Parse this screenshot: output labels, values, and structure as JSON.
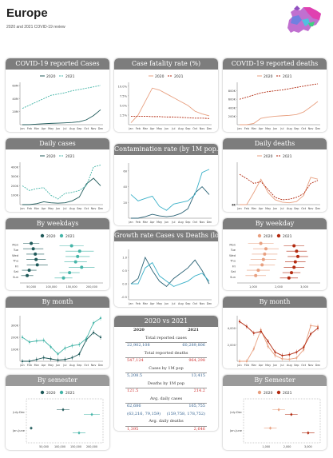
{
  "page": {
    "title": "Europe",
    "subtitle": "2020 and 2021 COVID-19 review"
  },
  "colors": {
    "teal_2020": "#1f5a5a",
    "teal_2021": "#45b5a8",
    "blue_2020": "#2a6275",
    "blue_2021": "#3ab0c8",
    "salmon_2020": "#e8a080",
    "red_2021": "#b22a10",
    "header": "#7d7d7d"
  },
  "months": [
    "Jan",
    "Feb",
    "Mar",
    "Apr",
    "May",
    "Jun",
    "Jul",
    "Aug",
    "Sep",
    "Oct",
    "Nov",
    "Dec"
  ],
  "weekdays": [
    "Mon",
    "Tue",
    "Wed",
    "Thu",
    "Fri",
    "Sat",
    "Sun"
  ],
  "legend": {
    "y2020": "2020",
    "y2021": "2021"
  },
  "panels": {
    "reported_cases": "COVID-19 reported Cases",
    "fatality_rate": "Case fatality rate (%)",
    "reported_deaths": "COVID-19 reported deaths",
    "daily_cases": "Daily cases",
    "contamination": "Contamination rate (by 1M pop.)",
    "daily_deaths": "Daily deaths",
    "weekdays_cases": "By weekdays",
    "growth": "Growth rate Cases vs Deaths (log)",
    "weekday_deaths": "By weekday",
    "month_cases": "By month",
    "vs": "2020 vs 2021",
    "month_deaths": "By month",
    "semester_cases": "By semester",
    "semester_deaths": "By Semester"
  },
  "comparison": {
    "year_a": "2020",
    "year_b": "2021",
    "rows": [
      {
        "label": "Total reported cases",
        "a": "22,902,108",
        "b": "60,289,806",
        "red": false
      },
      {
        "label": "Total reported deaths",
        "a": "547,124",
        "b": "964,298",
        "red": true
      },
      {
        "label": "Cases by 1M pop",
        "a": "5,208.5",
        "b": "13,415",
        "red": false
      },
      {
        "label": "Deaths by 1M pop",
        "a": "121.5",
        "b": "214.2",
        "red": true
      },
      {
        "label": "Avg. daily cases",
        "a": "62,686",
        "b": "165,755",
        "red": false
      },
      {
        "label": "",
        "a": "(63,216, 79,159)",
        "b": "(159,758, 178,752)",
        "red": false
      },
      {
        "label": "Avg. daily deaths",
        "a": "1,395",
        "b": "2,646",
        "red": true
      },
      {
        "label": "",
        "a": "(1,406, 1,796)",
        "b": "(2,534, 2,839)",
        "red": true
      },
      {
        "label": "Case fatality rate",
        "a": "2.3%",
        "b": "1.6%",
        "red": true
      }
    ]
  },
  "chart_data": [
    {
      "id": "reported_cases",
      "type": "line",
      "ylabels": [
        "20M",
        "40M",
        "60M"
      ],
      "ylim": [
        0,
        65
      ],
      "series": [
        {
          "name": "2020",
          "color": "#1f5a5a",
          "dash": false,
          "values": [
            0,
            0.1,
            0.8,
            1.5,
            2,
            2.4,
            2.8,
            3.4,
            4.5,
            7.5,
            14,
            22.9
          ]
        },
        {
          "name": "2021",
          "color": "#45b5a8",
          "dash": true,
          "values": [
            25,
            30,
            35,
            40,
            45,
            47,
            49,
            52,
            54,
            56,
            58,
            60.3
          ]
        }
      ]
    },
    {
      "id": "fatality_rate",
      "type": "line",
      "ylabels": [
        "2.5%",
        "5.0%",
        "7.5%",
        "10.0%"
      ],
      "ylim": [
        0,
        11
      ],
      "series": [
        {
          "name": "2020",
          "color": "#e8a080",
          "dash": false,
          "values": [
            0.5,
            2.5,
            6,
            9.5,
            9,
            8,
            7,
            6,
            5,
            3.5,
            2.8,
            2.3
          ]
        },
        {
          "name": "2021",
          "color": "#b22a10",
          "dash": true,
          "values": [
            2.2,
            2.2,
            2.2,
            2.1,
            2.1,
            2,
            2,
            1.9,
            1.8,
            1.7,
            1.7,
            1.6
          ]
        }
      ]
    },
    {
      "id": "reported_deaths",
      "type": "line",
      "ylabels": [
        "200K",
        "400K",
        "600K",
        "800K"
      ],
      "ylim": [
        0,
        1000
      ],
      "series": [
        {
          "name": "2020",
          "color": "#e8a080",
          "dash": false,
          "values": [
            0,
            0,
            30,
            150,
            180,
            200,
            210,
            220,
            240,
            300,
            420,
            547
          ]
        },
        {
          "name": "2021",
          "color": "#b22a10",
          "dash": true,
          "values": [
            600,
            650,
            700,
            750,
            780,
            800,
            820,
            850,
            880,
            910,
            940,
            964
          ]
        }
      ]
    },
    {
      "id": "daily_cases",
      "type": "line",
      "ylabels": [
        "100K",
        "200K",
        "300K",
        "400K"
      ],
      "ylim": [
        0,
        450
      ],
      "series": [
        {
          "name": "2020",
          "color": "#1f5a5a",
          "dash": false,
          "values": [
            0,
            0,
            10,
            30,
            20,
            15,
            20,
            40,
            80,
            220,
            280,
            200
          ]
        },
        {
          "name": "2021",
          "color": "#45b5a8",
          "dash": true,
          "values": [
            200,
            150,
            170,
            180,
            100,
            60,
            120,
            130,
            150,
            200,
            400,
            420
          ]
        }
      ]
    },
    {
      "id": "contamination",
      "type": "line",
      "ylabels": [
        "20",
        "40",
        "60"
      ],
      "ylim": [
        0,
        70
      ],
      "series": [
        {
          "name": "2020",
          "color": "#2a6275",
          "dash": false,
          "values": [
            0,
            0,
            2,
            5,
            3,
            2,
            3,
            6,
            12,
            32,
            40,
            30
          ]
        },
        {
          "name": "2021",
          "color": "#3ab0c8",
          "dash": false,
          "values": [
            30,
            22,
            25,
            28,
            15,
            10,
            18,
            20,
            22,
            30,
            58,
            62
          ]
        }
      ]
    },
    {
      "id": "daily_deaths",
      "type": "line",
      "ylabels": [
        "2K",
        "4K",
        "6K"
      ],
      "ylim": [
        0,
        7000
      ],
      "series": [
        {
          "name": "2020",
          "color": "#e8a080",
          "dash": false,
          "values": [
            0,
            0,
            2000,
            4200,
            2000,
            800,
            400,
            300,
            500,
            1500,
            4500,
            4200
          ]
        },
        {
          "name": "2021",
          "color": "#b22a10",
          "dash": true,
          "values": [
            5000,
            4300,
            3500,
            3800,
            2500,
            1200,
            800,
            900,
            1200,
            1800,
            3500,
            4000
          ]
        }
      ]
    },
    {
      "id": "growth",
      "type": "line",
      "ylabels": [
        "-0.5",
        "0.0",
        "0.5",
        "1.0"
      ],
      "ylim": [
        -0.6,
        1.3
      ],
      "series": [
        {
          "name": "Cases",
          "color": "#2a6275",
          "dash": false,
          "values": [
            0,
            0.2,
            1.0,
            0.5,
            0.1,
            -0.1,
            0.2,
            0.4,
            0.6,
            0.9,
            0.5,
            0.0
          ]
        },
        {
          "name": "Deaths",
          "color": "#3ab0c8",
          "dash": false,
          "values": [
            0,
            0,
            0.6,
            0.8,
            0.3,
            0.1,
            -0.1,
            0.0,
            0.1,
            0.3,
            0.4,
            0.1
          ]
        }
      ]
    },
    {
      "id": "weekdays_cases",
      "type": "scatter",
      "xlabels": [
        "50,000",
        "100,000",
        "150,000",
        "200,000"
      ],
      "xlim": [
        30000,
        220000
      ],
      "series": [
        {
          "name": "2020",
          "color": "#1f5a5a",
          "values": [
            [
              50000,
              20000
            ],
            [
              55000,
              25000
            ],
            [
              60000,
              22000
            ],
            [
              62000,
              24000
            ],
            [
              65000,
              26000
            ],
            [
              45000,
              18000
            ],
            [
              40000,
              15000
            ]
          ]
        },
        {
          "name": "2021",
          "color": "#45b5a8",
          "values": [
            [
              150000,
              30000
            ],
            [
              170000,
              35000
            ],
            [
              165000,
              30000
            ],
            [
              160000,
              28000
            ],
            [
              175000,
              32000
            ],
            [
              145000,
              25000
            ],
            [
              130000,
              22000
            ]
          ]
        }
      ]
    },
    {
      "id": "weekday_deaths",
      "type": "scatter",
      "xlabels": [
        "1,000",
        "2,000",
        "3,000"
      ],
      "xlim": [
        500,
        3500
      ],
      "series": [
        {
          "name": "2020",
          "color": "#e8a080",
          "values": [
            [
              1300,
              500
            ],
            [
              1500,
              500
            ],
            [
              1450,
              500
            ],
            [
              1400,
              500
            ],
            [
              1350,
              500
            ],
            [
              1200,
              450
            ],
            [
              1100,
              400
            ]
          ]
        },
        {
          "name": "2021",
          "color": "#b22a10",
          "values": [
            [
              2600,
              400
            ],
            [
              2700,
              400
            ],
            [
              2750,
              400
            ],
            [
              2650,
              400
            ],
            [
              2600,
              400
            ],
            [
              2500,
              350
            ],
            [
              2400,
              350
            ]
          ]
        }
      ]
    },
    {
      "id": "month_cases",
      "type": "line",
      "ylabels": [
        "100K",
        "200K",
        "300K"
      ],
      "ylim": [
        0,
        380
      ],
      "series": [
        {
          "name": "2020",
          "color": "#1f5a5a",
          "dash": false,
          "values": [
            0,
            0,
            15,
            30,
            20,
            10,
            15,
            30,
            60,
            180,
            240,
            200
          ]
        },
        {
          "name": "2021",
          "color": "#45b5a8",
          "dash": false,
          "values": [
            200,
            160,
            170,
            175,
            120,
            60,
            110,
            130,
            140,
            190,
            320,
            360
          ]
        }
      ]
    },
    {
      "id": "month_deaths",
      "type": "line",
      "ylabels": [
        "2,000",
        "4,000"
      ],
      "ylim": [
        0,
        5500
      ],
      "series": [
        {
          "name": "2020",
          "color": "#e8a080",
          "dash": false,
          "values": [
            0,
            0,
            1500,
            3800,
            1800,
            700,
            300,
            250,
            400,
            1400,
            4300,
            4200
          ]
        },
        {
          "name": "2021",
          "color": "#b22a10",
          "dash": false,
          "values": [
            4800,
            4200,
            3400,
            3600,
            2400,
            1100,
            700,
            800,
            1100,
            1700,
            3300,
            4000
          ]
        }
      ]
    },
    {
      "id": "semester_cases",
      "type": "scatter",
      "xlabels": [
        "50,000",
        "100,000",
        "150,000",
        "200,000"
      ],
      "xlim": [
        0,
        230000
      ],
      "ycats": [
        "July-Dec",
        "Jan-June"
      ],
      "series": [
        {
          "name": "2020",
          "color": "#1f5a5a",
          "values": [
            [
              110000,
              20000
            ],
            [
              10000,
              5000
            ]
          ]
        },
        {
          "name": "2021",
          "color": "#45b5a8",
          "values": [
            [
              200000,
              25000
            ],
            [
              160000,
              20000
            ]
          ]
        }
      ]
    },
    {
      "id": "semester_deaths",
      "type": "scatter",
      "xlabels": [
        "1,000",
        "2,000",
        "3,000"
      ],
      "xlim": [
        0,
        3500
      ],
      "ycats": [
        "July-Dec",
        "Jan-June"
      ],
      "series": [
        {
          "name": "2020",
          "color": "#e8a080",
          "values": [
            [
              1600,
              300
            ],
            [
              1200,
              300
            ]
          ]
        },
        {
          "name": "2021",
          "color": "#b22a10",
          "values": [
            [
              2200,
              300
            ],
            [
              3000,
              300
            ]
          ]
        }
      ]
    }
  ]
}
